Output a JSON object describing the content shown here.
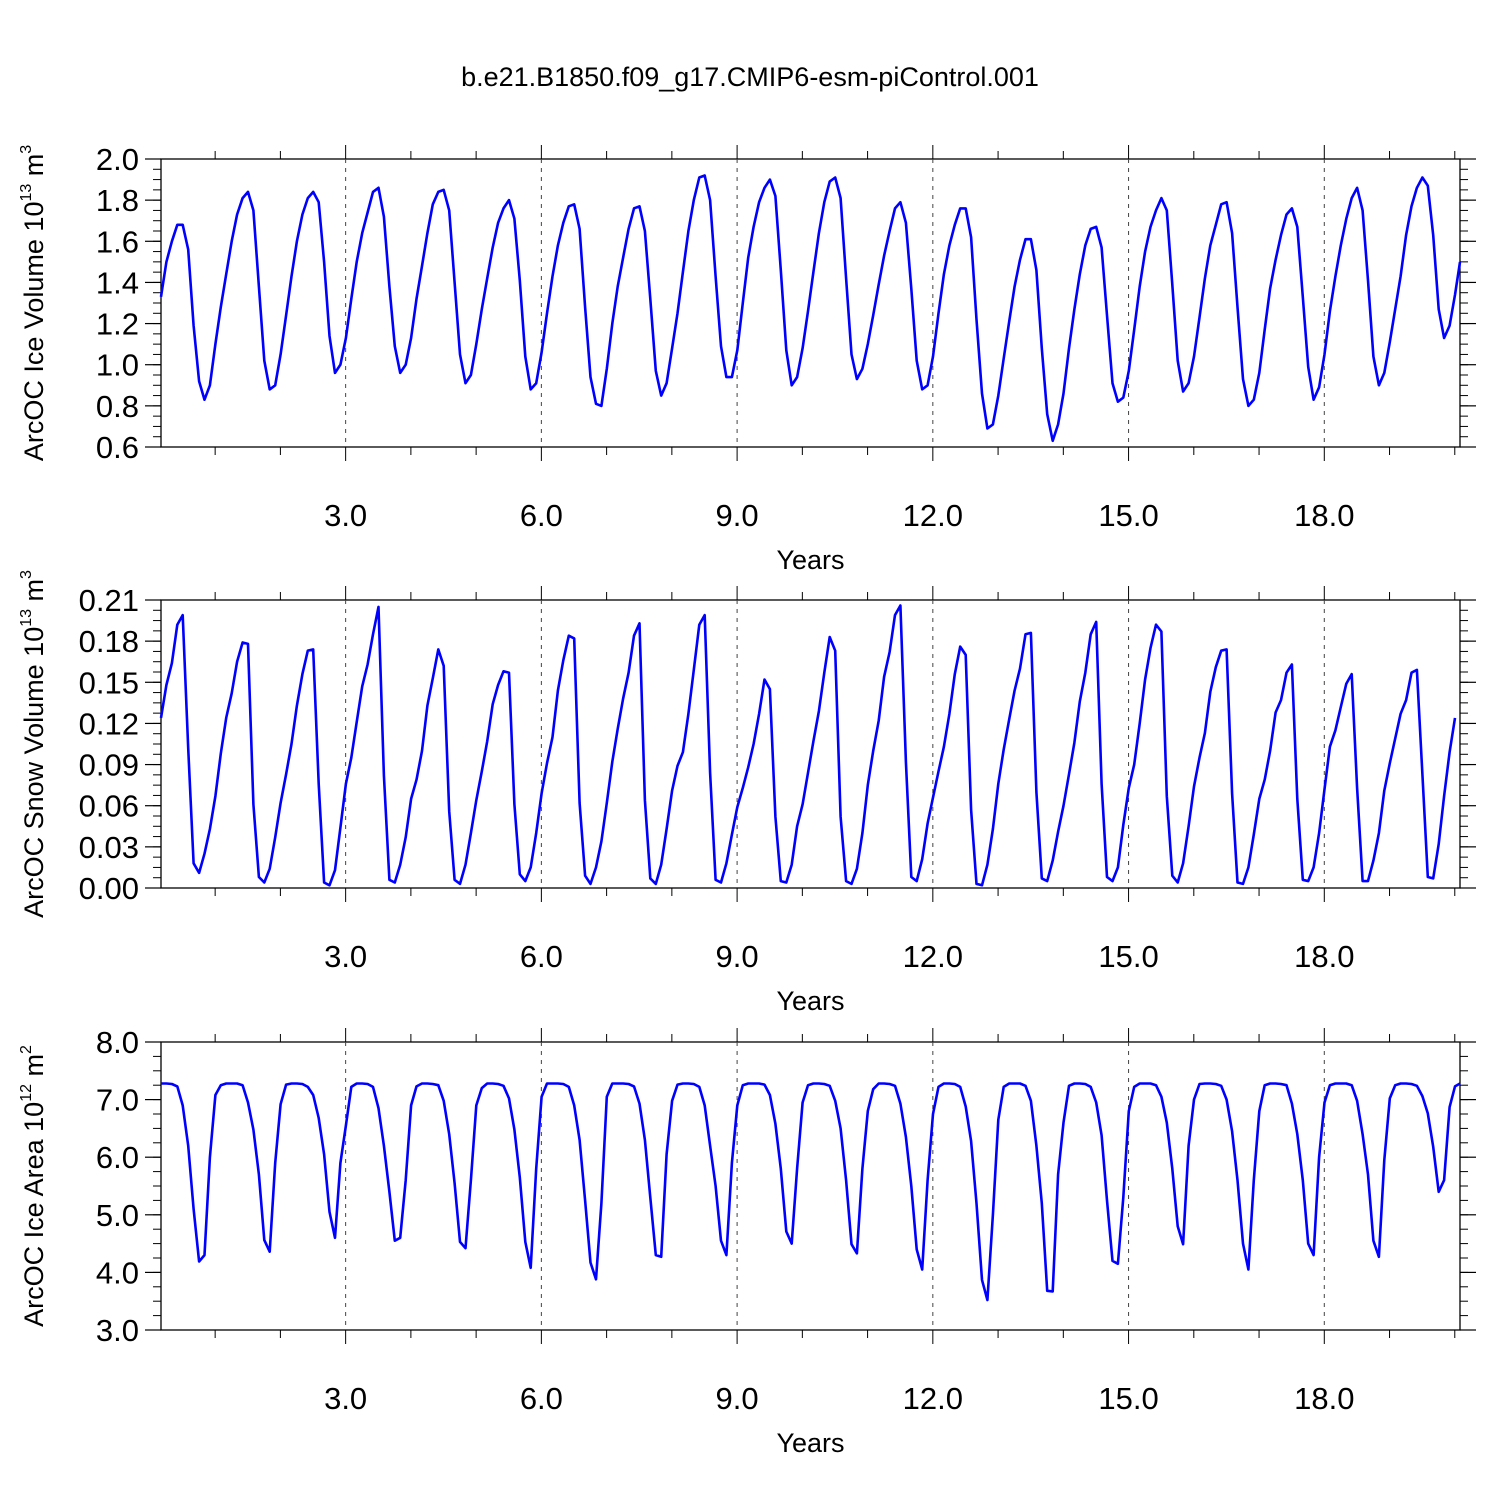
{
  "title": "b.e21.B1850.f09_g17.CMIP6-esm-piControl.001",
  "line_color": "#0000ff",
  "chart_data": [
    {
      "type": "line",
      "xlabel": "Years",
      "ylabel": {
        "prefix": "ArcOC Ice Volume 10",
        "exponent": "13",
        "unit": " m",
        "unit_exponent": "3"
      },
      "xlim": [
        0.17,
        20.08
      ],
      "ylim": [
        0.6,
        2.0
      ],
      "xticks": [
        3,
        6,
        9,
        12,
        15,
        18
      ],
      "xtick_labels": [
        "3.0",
        "6.0",
        "9.0",
        "12.0",
        "15.0",
        "18.0"
      ],
      "yticks": [
        0.6,
        0.8,
        1.0,
        1.2,
        1.4,
        1.6,
        1.8,
        2.0
      ],
      "ytick_labels": [
        "0.6",
        "0.8",
        "1.0",
        "1.2",
        "1.4",
        "1.6",
        "1.8",
        "2.0"
      ],
      "grid": "vertical dashed at major x ticks",
      "series": [
        {
          "x_start": 0.17,
          "x_step": 0.0833333,
          "values": [
            1.33,
            1.5,
            1.6,
            1.68,
            1.68,
            1.56,
            1.19,
            0.92,
            0.83,
            0.9,
            1.1,
            1.28,
            1.44,
            1.6,
            1.73,
            1.81,
            1.84,
            1.75,
            1.38,
            1.02,
            0.88,
            0.9,
            1.05,
            1.24,
            1.43,
            1.6,
            1.73,
            1.81,
            1.84,
            1.79,
            1.5,
            1.14,
            0.96,
            1.0,
            1.13,
            1.32,
            1.5,
            1.64,
            1.74,
            1.84,
            1.86,
            1.72,
            1.38,
            1.09,
            0.96,
            1.0,
            1.13,
            1.32,
            1.48,
            1.64,
            1.78,
            1.84,
            1.85,
            1.75,
            1.4,
            1.05,
            0.91,
            0.95,
            1.1,
            1.27,
            1.42,
            1.57,
            1.69,
            1.76,
            1.8,
            1.71,
            1.41,
            1.04,
            0.88,
            0.91,
            1.06,
            1.25,
            1.43,
            1.58,
            1.69,
            1.77,
            1.78,
            1.66,
            1.28,
            0.94,
            0.81,
            0.8,
            0.98,
            1.2,
            1.38,
            1.52,
            1.66,
            1.76,
            1.77,
            1.65,
            1.32,
            0.97,
            0.85,
            0.91,
            1.08,
            1.25,
            1.45,
            1.65,
            1.8,
            1.91,
            1.92,
            1.8,
            1.43,
            1.09,
            0.94,
            0.94,
            1.07,
            1.3,
            1.52,
            1.67,
            1.79,
            1.86,
            1.9,
            1.82,
            1.46,
            1.07,
            0.9,
            0.94,
            1.08,
            1.26,
            1.45,
            1.64,
            1.79,
            1.89,
            1.91,
            1.81,
            1.42,
            1.05,
            0.93,
            0.98,
            1.1,
            1.24,
            1.39,
            1.53,
            1.65,
            1.76,
            1.79,
            1.69,
            1.37,
            1.02,
            0.88,
            0.9,
            1.04,
            1.25,
            1.44,
            1.58,
            1.68,
            1.76,
            1.76,
            1.62,
            1.22,
            0.86,
            0.69,
            0.71,
            0.85,
            1.03,
            1.21,
            1.38,
            1.51,
            1.61,
            1.61,
            1.46,
            1.08,
            0.76,
            0.63,
            0.71,
            0.86,
            1.08,
            1.27,
            1.44,
            1.58,
            1.66,
            1.67,
            1.57,
            1.24,
            0.91,
            0.82,
            0.84,
            0.97,
            1.17,
            1.38,
            1.55,
            1.67,
            1.75,
            1.81,
            1.75,
            1.39,
            1.02,
            0.87,
            0.91,
            1.04,
            1.23,
            1.42,
            1.58,
            1.68,
            1.78,
            1.79,
            1.64,
            1.28,
            0.93,
            0.8,
            0.83,
            0.96,
            1.17,
            1.37,
            1.51,
            1.63,
            1.73,
            1.76,
            1.67,
            1.33,
            0.99,
            0.83,
            0.89,
            1.05,
            1.26,
            1.43,
            1.58,
            1.71,
            1.81,
            1.86,
            1.75,
            1.41,
            1.04,
            0.9,
            0.96,
            1.11,
            1.27,
            1.43,
            1.63,
            1.77,
            1.86,
            1.91,
            1.87,
            1.63,
            1.27,
            1.13,
            1.19,
            1.34,
            1.5
          ]
        }
      ]
    },
    {
      "type": "line",
      "xlabel": "Years",
      "ylabel": {
        "prefix": "ArcOC Snow Volume 10",
        "exponent": "13",
        "unit": " m",
        "unit_exponent": "3"
      },
      "xlim": [
        0.17,
        20.08
      ],
      "ylim": [
        0.0,
        0.21
      ],
      "xticks": [
        3,
        6,
        9,
        12,
        15,
        18
      ],
      "xtick_labels": [
        "3.0",
        "6.0",
        "9.0",
        "12.0",
        "15.0",
        "18.0"
      ],
      "yticks": [
        0.0,
        0.03,
        0.06,
        0.09,
        0.12,
        0.15,
        0.18,
        0.21
      ],
      "ytick_labels": [
        "0.00",
        "0.03",
        "0.06",
        "0.09",
        "0.12",
        "0.15",
        "0.18",
        "0.21"
      ],
      "grid": "vertical dashed at major x ticks",
      "series": [
        {
          "x_start": 0.17,
          "x_step": 0.0833333,
          "values": [
            0.124,
            0.148,
            0.164,
            0.192,
            0.199,
            0.102,
            0.018,
            0.011,
            0.025,
            0.043,
            0.067,
            0.098,
            0.124,
            0.142,
            0.165,
            0.179,
            0.178,
            0.061,
            0.008,
            0.004,
            0.014,
            0.037,
            0.062,
            0.083,
            0.105,
            0.133,
            0.156,
            0.173,
            0.174,
            0.076,
            0.004,
            0.002,
            0.013,
            0.044,
            0.076,
            0.095,
            0.121,
            0.147,
            0.163,
            0.185,
            0.205,
            0.082,
            0.006,
            0.004,
            0.017,
            0.037,
            0.065,
            0.079,
            0.1,
            0.133,
            0.153,
            0.174,
            0.162,
            0.056,
            0.006,
            0.003,
            0.017,
            0.04,
            0.064,
            0.085,
            0.107,
            0.134,
            0.148,
            0.158,
            0.157,
            0.061,
            0.01,
            0.005,
            0.015,
            0.04,
            0.069,
            0.091,
            0.11,
            0.144,
            0.166,
            0.184,
            0.182,
            0.062,
            0.009,
            0.003,
            0.015,
            0.034,
            0.062,
            0.092,
            0.116,
            0.138,
            0.157,
            0.184,
            0.193,
            0.064,
            0.007,
            0.003,
            0.017,
            0.043,
            0.071,
            0.089,
            0.099,
            0.127,
            0.159,
            0.192,
            0.199,
            0.084,
            0.006,
            0.004,
            0.018,
            0.039,
            0.059,
            0.073,
            0.088,
            0.105,
            0.127,
            0.152,
            0.145,
            0.052,
            0.005,
            0.004,
            0.017,
            0.045,
            0.061,
            0.084,
            0.107,
            0.129,
            0.157,
            0.183,
            0.173,
            0.052,
            0.005,
            0.003,
            0.014,
            0.04,
            0.075,
            0.1,
            0.122,
            0.154,
            0.172,
            0.199,
            0.206,
            0.092,
            0.008,
            0.005,
            0.021,
            0.047,
            0.066,
            0.085,
            0.103,
            0.127,
            0.156,
            0.176,
            0.17,
            0.057,
            0.003,
            0.002,
            0.017,
            0.043,
            0.076,
            0.101,
            0.123,
            0.144,
            0.16,
            0.185,
            0.186,
            0.07,
            0.007,
            0.005,
            0.02,
            0.041,
            0.06,
            0.083,
            0.106,
            0.136,
            0.157,
            0.185,
            0.194,
            0.076,
            0.008,
            0.005,
            0.015,
            0.046,
            0.073,
            0.09,
            0.12,
            0.152,
            0.175,
            0.192,
            0.187,
            0.067,
            0.009,
            0.004,
            0.018,
            0.045,
            0.074,
            0.095,
            0.113,
            0.143,
            0.161,
            0.173,
            0.174,
            0.069,
            0.004,
            0.003,
            0.015,
            0.039,
            0.065,
            0.079,
            0.1,
            0.128,
            0.137,
            0.157,
            0.163,
            0.065,
            0.006,
            0.005,
            0.015,
            0.04,
            0.072,
            0.103,
            0.115,
            0.132,
            0.149,
            0.156,
            0.073,
            0.005,
            0.005,
            0.02,
            0.04,
            0.071,
            0.091,
            0.109,
            0.127,
            0.137,
            0.157,
            0.159,
            0.083,
            0.008,
            0.007,
            0.032,
            0.067,
            0.099,
            0.124
          ]
        }
      ]
    },
    {
      "type": "line",
      "xlabel": "Years",
      "ylabel": {
        "prefix": "ArcOC Ice Area 10",
        "exponent": "12",
        "unit": " m",
        "unit_exponent": "2"
      },
      "xlim": [
        0.17,
        20.08
      ],
      "ylim": [
        3.0,
        8.0
      ],
      "xticks": [
        3,
        6,
        9,
        12,
        15,
        18
      ],
      "xtick_labels": [
        "3.0",
        "6.0",
        "9.0",
        "12.0",
        "15.0",
        "18.0"
      ],
      "yticks": [
        3.0,
        4.0,
        5.0,
        6.0,
        7.0,
        8.0
      ],
      "ytick_labels": [
        "3.0",
        "4.0",
        "5.0",
        "6.0",
        "7.0",
        "8.0"
      ],
      "grid": "vertical dashed at major x ticks",
      "series": [
        {
          "x_start": 0.17,
          "x_step": 0.0833333,
          "values": [
            7.28,
            7.28,
            7.27,
            7.23,
            6.9,
            6.2,
            5.1,
            4.19,
            4.3,
            6.0,
            7.08,
            7.25,
            7.28,
            7.28,
            7.28,
            7.25,
            6.95,
            6.48,
            5.7,
            4.56,
            4.36,
            5.9,
            6.92,
            7.26,
            7.28,
            7.28,
            7.27,
            7.22,
            7.08,
            6.68,
            6.05,
            5.05,
            4.6,
            5.9,
            6.55,
            7.22,
            7.28,
            7.28,
            7.27,
            7.22,
            6.85,
            6.2,
            5.4,
            4.55,
            4.6,
            5.6,
            6.9,
            7.23,
            7.28,
            7.28,
            7.27,
            7.25,
            6.98,
            6.4,
            5.55,
            4.53,
            4.42,
            5.6,
            6.9,
            7.2,
            7.28,
            7.28,
            7.27,
            7.24,
            7.02,
            6.48,
            5.65,
            4.53,
            4.08,
            5.8,
            7.05,
            7.28,
            7.28,
            7.28,
            7.27,
            7.22,
            6.9,
            6.3,
            5.25,
            4.17,
            3.88,
            5.2,
            7.05,
            7.28,
            7.28,
            7.28,
            7.27,
            7.23,
            6.93,
            6.3,
            5.3,
            4.3,
            4.27,
            6.05,
            6.98,
            7.26,
            7.28,
            7.28,
            7.27,
            7.22,
            6.9,
            6.2,
            5.5,
            4.55,
            4.3,
            5.9,
            6.9,
            7.25,
            7.28,
            7.28,
            7.28,
            7.26,
            7.08,
            6.58,
            5.8,
            4.71,
            4.5,
            5.8,
            6.95,
            7.25,
            7.28,
            7.28,
            7.27,
            7.24,
            6.98,
            6.5,
            5.6,
            4.49,
            4.33,
            5.8,
            6.8,
            7.18,
            7.28,
            7.28,
            7.27,
            7.24,
            6.93,
            6.35,
            5.5,
            4.4,
            4.05,
            5.6,
            6.75,
            7.22,
            7.28,
            7.28,
            7.27,
            7.22,
            6.88,
            6.28,
            5.2,
            3.87,
            3.52,
            5.0,
            6.65,
            7.22,
            7.28,
            7.28,
            7.28,
            7.24,
            6.98,
            6.2,
            5.2,
            3.68,
            3.67,
            5.7,
            6.6,
            7.24,
            7.28,
            7.28,
            7.27,
            7.22,
            6.95,
            6.38,
            5.25,
            4.2,
            4.15,
            5.3,
            6.8,
            7.22,
            7.28,
            7.28,
            7.28,
            7.25,
            7.05,
            6.6,
            5.8,
            4.8,
            4.49,
            6.2,
            7.0,
            7.27,
            7.28,
            7.28,
            7.27,
            7.24,
            7.0,
            6.45,
            5.6,
            4.5,
            4.05,
            5.6,
            6.8,
            7.25,
            7.28,
            7.28,
            7.27,
            7.25,
            6.93,
            6.4,
            5.6,
            4.5,
            4.3,
            6.0,
            6.95,
            7.25,
            7.28,
            7.28,
            7.28,
            7.25,
            6.98,
            6.4,
            5.7,
            4.55,
            4.27,
            5.95,
            7.02,
            7.25,
            7.28,
            7.28,
            7.27,
            7.24,
            7.06,
            6.76,
            6.18,
            5.4,
            5.6,
            6.87,
            7.23,
            7.28
          ]
        }
      ]
    }
  ]
}
